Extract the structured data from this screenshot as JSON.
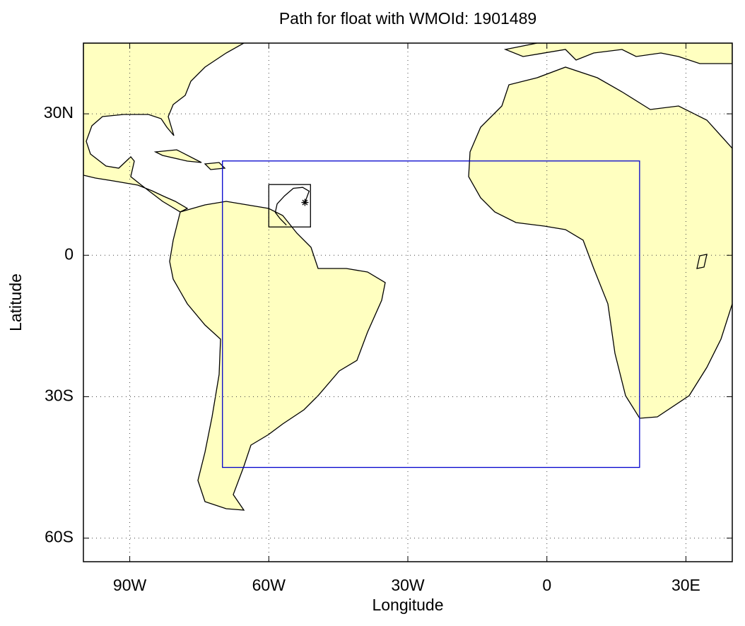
{
  "chart_data": {
    "type": "map",
    "title": "Path for float with WMOId: 1901489",
    "xlabel": "Longitude",
    "ylabel": "Latitude",
    "xlim": [
      -100,
      40
    ],
    "ylim": [
      -65,
      45
    ],
    "xticks": [
      {
        "value": -90,
        "label": "90W"
      },
      {
        "value": -60,
        "label": "60W"
      },
      {
        "value": -30,
        "label": "30W"
      },
      0,
      {
        "value": 30,
        "label": "30E"
      }
    ],
    "yticks": [
      {
        "value": -60,
        "label": "60S"
      },
      {
        "value": -30,
        "label": "30S"
      },
      0,
      {
        "value": 30,
        "label": "30N"
      }
    ],
    "grid": true,
    "land_color": "#ffffc0",
    "regions": [
      {
        "color": "#0000cc",
        "lon": [
          -70,
          20
        ],
        "lat": [
          -45,
          20
        ]
      },
      {
        "color": "#000000",
        "lon": [
          -60,
          -51
        ],
        "lat": [
          6,
          15
        ]
      }
    ],
    "float_path": {
      "color": "#000000",
      "lon": [
        -52.2,
        -51.3,
        -52.7,
        -54.7,
        -56.6,
        -58.2,
        -58.6,
        -57.6,
        -56.2
      ],
      "lat": [
        11.2,
        13.6,
        14.4,
        14.2,
        12.6,
        10.9,
        9.1,
        7.8,
        6.4
      ]
    }
  }
}
